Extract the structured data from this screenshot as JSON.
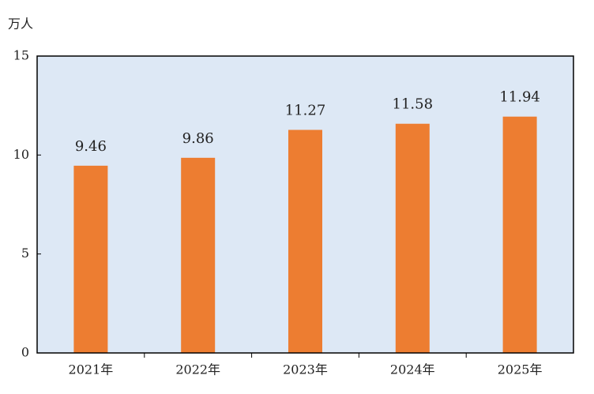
{
  "chart_data": {
    "type": "bar",
    "y_label": "万人",
    "categories": [
      "2021年",
      "2022年",
      "2023年",
      "2024年",
      "2025年"
    ],
    "values": [
      9.46,
      9.86,
      11.27,
      11.58,
      11.94
    ],
    "color": "#ed7d31",
    "ylim": [
      0,
      15
    ],
    "yticks": [
      0,
      5,
      10,
      15
    ],
    "grid": false
  }
}
